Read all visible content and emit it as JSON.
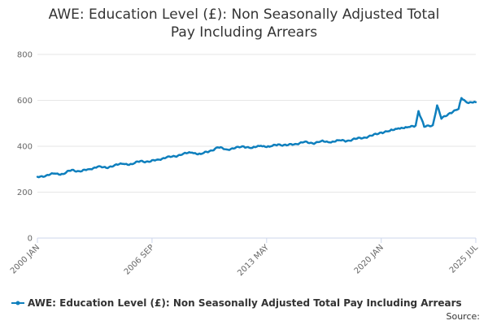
{
  "colors": {
    "series": "#0e7fbd",
    "grid": "#e6e6e6",
    "axis": "#ccd6eb"
  },
  "chart_data": {
    "type": "line",
    "title": "AWE: Education Level (£): Non Seasonally Adjusted Total Pay Including Arrears",
    "title_lines": [
      "AWE: Education Level (£): Non Seasonally Adjusted Total",
      "Pay Including Arrears"
    ],
    "xlabel": "",
    "ylabel": "",
    "ylim": [
      0,
      800
    ],
    "yticks": [
      0,
      200,
      400,
      600,
      800
    ],
    "xlim": [
      "2000-01",
      "2025-07"
    ],
    "xticks": [
      "2000 JAN",
      "2006 SEP",
      "2013 MAY",
      "2020 JAN",
      "2025 JUL"
    ],
    "grid": true,
    "legend_position": "bottom",
    "source_label": "Source:",
    "series": [
      {
        "name": "AWE: Education Level (£): Non Seasonally Adjusted Total Pay Including Arrears",
        "x": [
          "2000-01",
          "2000-07",
          "2001-01",
          "2001-07",
          "2002-01",
          "2002-07",
          "2003-01",
          "2003-07",
          "2004-01",
          "2004-07",
          "2005-01",
          "2005-07",
          "2006-01",
          "2006-07",
          "2007-01",
          "2007-07",
          "2008-01",
          "2008-07",
          "2009-01",
          "2009-07",
          "2010-01",
          "2010-07",
          "2011-01",
          "2011-07",
          "2012-01",
          "2012-07",
          "2013-01",
          "2013-07",
          "2014-01",
          "2014-07",
          "2015-01",
          "2015-07",
          "2016-01",
          "2016-07",
          "2017-01",
          "2017-07",
          "2018-01",
          "2018-07",
          "2019-01",
          "2019-07",
          "2020-01",
          "2020-07",
          "2021-01",
          "2021-07",
          "2022-01",
          "2022-03",
          "2022-07",
          "2023-01",
          "2023-04",
          "2023-07",
          "2024-01",
          "2024-07",
          "2024-09",
          "2025-01",
          "2025-07"
        ],
        "values": [
          267,
          272,
          281,
          279,
          297,
          290,
          300,
          311,
          306,
          318,
          323,
          322,
          336,
          332,
          342,
          351,
          356,
          368,
          372,
          366,
          378,
          395,
          386,
          392,
          399,
          393,
          402,
          398,
          408,
          404,
          410,
          418,
          413,
          422,
          417,
          426,
          423,
          432,
          438,
          447,
          460,
          467,
          478,
          482,
          490,
          553,
          485,
          492,
          578,
          520,
          545,
          563,
          610,
          590,
          592
        ]
      }
    ]
  }
}
